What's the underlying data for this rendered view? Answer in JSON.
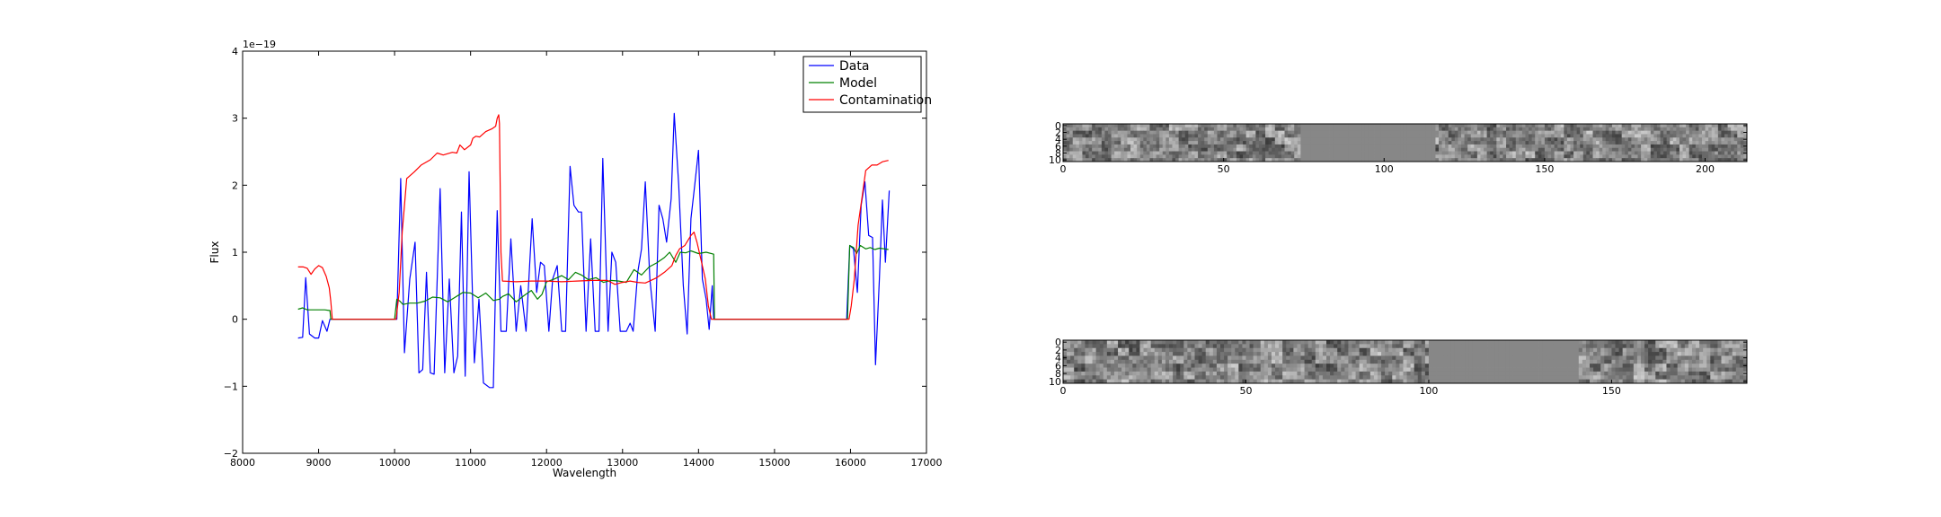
{
  "chart_data": [
    {
      "type": "line",
      "title": "",
      "xlabel": "Wavelength",
      "ylabel": "Flux",
      "offset_text": "1e−19",
      "xlim": [
        8000,
        17000
      ],
      "ylim": [
        -2,
        4
      ],
      "xticks": [
        8000,
        9000,
        10000,
        11000,
        12000,
        13000,
        14000,
        15000,
        16000,
        17000
      ],
      "yticks": [
        -2,
        -1,
        0,
        1,
        2,
        3,
        4
      ],
      "ytick_labels": [
        "−2",
        "−1",
        "0",
        "1",
        "2",
        "3",
        "4"
      ],
      "legend_position": "top-right",
      "grid": false,
      "series": [
        {
          "name": "Data",
          "color": "#0000ff",
          "points": [
            [
              8730,
              -0.28
            ],
            [
              8790,
              -0.27
            ],
            [
              8830,
              0.62
            ],
            [
              8880,
              -0.22
            ],
            [
              8950,
              -0.28
            ],
            [
              9000,
              -0.28
            ],
            [
              9050,
              -0.02
            ],
            [
              9110,
              -0.18
            ],
            [
              9150,
              0.0
            ],
            [
              10030,
              0.0
            ],
            [
              10080,
              2.1
            ],
            [
              10130,
              -0.5
            ],
            [
              10200,
              0.6
            ],
            [
              10270,
              1.15
            ],
            [
              10320,
              -0.8
            ],
            [
              10370,
              -0.75
            ],
            [
              10420,
              0.7
            ],
            [
              10470,
              -0.8
            ],
            [
              10520,
              -0.82
            ],
            [
              10600,
              1.95
            ],
            [
              10660,
              -0.8
            ],
            [
              10720,
              0.6
            ],
            [
              10780,
              -0.8
            ],
            [
              10830,
              -0.55
            ],
            [
              10880,
              1.6
            ],
            [
              10930,
              -0.85
            ],
            [
              10980,
              2.2
            ],
            [
              11050,
              -0.65
            ],
            [
              11110,
              0.3
            ],
            [
              11170,
              -0.95
            ],
            [
              11250,
              -1.02
            ],
            [
              11300,
              -1.02
            ],
            [
              11350,
              1.62
            ],
            [
              11400,
              -0.18
            ],
            [
              11470,
              -0.18
            ],
            [
              11530,
              1.2
            ],
            [
              11600,
              -0.18
            ],
            [
              11660,
              0.5
            ],
            [
              11730,
              -0.18
            ],
            [
              11810,
              1.5
            ],
            [
              11870,
              0.4
            ],
            [
              11920,
              0.85
            ],
            [
              11970,
              0.8
            ],
            [
              12030,
              -0.18
            ],
            [
              12080,
              0.6
            ],
            [
              12140,
              0.8
            ],
            [
              12200,
              -0.18
            ],
            [
              12250,
              -0.18
            ],
            [
              12310,
              2.28
            ],
            [
              12360,
              1.7
            ],
            [
              12420,
              1.6
            ],
            [
              12460,
              1.6
            ],
            [
              12520,
              -0.18
            ],
            [
              12580,
              1.2
            ],
            [
              12640,
              -0.18
            ],
            [
              12690,
              -0.18
            ],
            [
              12740,
              2.4
            ],
            [
              12810,
              -0.18
            ],
            [
              12860,
              1.0
            ],
            [
              12910,
              0.85
            ],
            [
              12970,
              -0.18
            ],
            [
              13050,
              -0.18
            ],
            [
              13100,
              -0.06
            ],
            [
              13140,
              -0.18
            ],
            [
              13200,
              0.7
            ],
            [
              13250,
              1.05
            ],
            [
              13300,
              2.05
            ],
            [
              13360,
              0.6
            ],
            [
              13430,
              -0.18
            ],
            [
              13480,
              1.7
            ],
            [
              13530,
              1.5
            ],
            [
              13580,
              1.15
            ],
            [
              13640,
              1.8
            ],
            [
              13680,
              3.07
            ],
            [
              13740,
              2.0
            ],
            [
              13800,
              0.5
            ],
            [
              13850,
              -0.22
            ],
            [
              13900,
              1.5
            ],
            [
              13950,
              2.0
            ],
            [
              14000,
              2.52
            ],
            [
              14050,
              0.6
            ],
            [
              14100,
              0.3
            ],
            [
              14140,
              -0.15
            ],
            [
              14180,
              0.5
            ],
            [
              14200,
              0.0
            ],
            [
              15950,
              0.0
            ],
            [
              15990,
              1.1
            ],
            [
              16040,
              1.05
            ],
            [
              16090,
              0.4
            ],
            [
              16140,
              1.7
            ],
            [
              16190,
              2.05
            ],
            [
              16240,
              1.25
            ],
            [
              16290,
              1.22
            ],
            [
              16330,
              -0.68
            ],
            [
              16380,
              0.6
            ],
            [
              16420,
              1.78
            ],
            [
              16460,
              0.85
            ],
            [
              16510,
              1.92
            ]
          ]
        },
        {
          "name": "Model",
          "color": "#008000",
          "points": [
            [
              8730,
              0.15
            ],
            [
              8790,
              0.17
            ],
            [
              8850,
              0.14
            ],
            [
              9000,
              0.14
            ],
            [
              9080,
              0.14
            ],
            [
              9150,
              0.13
            ],
            [
              9160,
              0.0
            ],
            [
              10000,
              0.0
            ],
            [
              10030,
              0.3
            ],
            [
              10070,
              0.27
            ],
            [
              10110,
              0.22
            ],
            [
              10200,
              0.24
            ],
            [
              10300,
              0.24
            ],
            [
              10400,
              0.27
            ],
            [
              10500,
              0.33
            ],
            [
              10600,
              0.32
            ],
            [
              10700,
              0.26
            ],
            [
              10800,
              0.33
            ],
            [
              10900,
              0.4
            ],
            [
              11000,
              0.39
            ],
            [
              11100,
              0.32
            ],
            [
              11200,
              0.39
            ],
            [
              11300,
              0.28
            ],
            [
              11380,
              0.3
            ],
            [
              11420,
              0.34
            ],
            [
              11500,
              0.38
            ],
            [
              11600,
              0.26
            ],
            [
              11700,
              0.35
            ],
            [
              11800,
              0.43
            ],
            [
              11880,
              0.3
            ],
            [
              11940,
              0.37
            ],
            [
              12000,
              0.56
            ],
            [
              12100,
              0.6
            ],
            [
              12200,
              0.65
            ],
            [
              12290,
              0.59
            ],
            [
              12380,
              0.7
            ],
            [
              12460,
              0.66
            ],
            [
              12550,
              0.59
            ],
            [
              12650,
              0.62
            ],
            [
              12750,
              0.55
            ],
            [
              12850,
              0.58
            ],
            [
              12950,
              0.57
            ],
            [
              13050,
              0.55
            ],
            [
              13150,
              0.74
            ],
            [
              13250,
              0.66
            ],
            [
              13350,
              0.78
            ],
            [
              13450,
              0.84
            ],
            [
              13550,
              0.92
            ],
            [
              13620,
              1.0
            ],
            [
              13700,
              0.85
            ],
            [
              13760,
              1.0
            ],
            [
              13830,
              0.99
            ],
            [
              13900,
              1.02
            ],
            [
              14000,
              0.98
            ],
            [
              14100,
              1.0
            ],
            [
              14200,
              0.97
            ],
            [
              14210,
              0.0
            ],
            [
              15960,
              0.0
            ],
            [
              15990,
              1.1
            ],
            [
              16040,
              1.07
            ],
            [
              16080,
              0.98
            ],
            [
              16130,
              1.1
            ],
            [
              16200,
              1.05
            ],
            [
              16260,
              1.07
            ],
            [
              16320,
              1.04
            ],
            [
              16380,
              1.06
            ],
            [
              16450,
              1.05
            ],
            [
              16500,
              1.04
            ]
          ]
        },
        {
          "name": "Contamination",
          "color": "#ff0000",
          "points": [
            [
              8730,
              0.78
            ],
            [
              8800,
              0.78
            ],
            [
              8850,
              0.76
            ],
            [
              8900,
              0.67
            ],
            [
              8950,
              0.75
            ],
            [
              9000,
              0.8
            ],
            [
              9050,
              0.77
            ],
            [
              9100,
              0.64
            ],
            [
              9140,
              0.47
            ],
            [
              9160,
              0.27
            ],
            [
              9180,
              0.0
            ],
            [
              10020,
              0.0
            ],
            [
              10060,
              0.4
            ],
            [
              10100,
              1.3
            ],
            [
              10160,
              2.1
            ],
            [
              10260,
              2.2
            ],
            [
              10350,
              2.3
            ],
            [
              10470,
              2.38
            ],
            [
              10560,
              2.48
            ],
            [
              10640,
              2.45
            ],
            [
              10760,
              2.49
            ],
            [
              10820,
              2.48
            ],
            [
              10860,
              2.6
            ],
            [
              10920,
              2.53
            ],
            [
              11000,
              2.6
            ],
            [
              11030,
              2.7
            ],
            [
              11070,
              2.73
            ],
            [
              11120,
              2.72
            ],
            [
              11200,
              2.8
            ],
            [
              11280,
              2.84
            ],
            [
              11330,
              2.88
            ],
            [
              11350,
              3.0
            ],
            [
              11370,
              3.05
            ],
            [
              11380,
              2.92
            ],
            [
              11400,
              1.0
            ],
            [
              11420,
              0.57
            ],
            [
              11600,
              0.56
            ],
            [
              11800,
              0.57
            ],
            [
              12000,
              0.57
            ],
            [
              12200,
              0.56
            ],
            [
              12400,
              0.57
            ],
            [
              12600,
              0.58
            ],
            [
              12800,
              0.58
            ],
            [
              12900,
              0.52
            ],
            [
              13000,
              0.55
            ],
            [
              13100,
              0.57
            ],
            [
              13200,
              0.55
            ],
            [
              13300,
              0.54
            ],
            [
              13450,
              0.62
            ],
            [
              13550,
              0.7
            ],
            [
              13650,
              0.8
            ],
            [
              13700,
              0.95
            ],
            [
              13750,
              1.05
            ],
            [
              13820,
              1.1
            ],
            [
              13900,
              1.25
            ],
            [
              13940,
              1.3
            ],
            [
              13980,
              1.15
            ],
            [
              14030,
              0.9
            ],
            [
              14090,
              0.6
            ],
            [
              14130,
              0.2
            ],
            [
              14170,
              0.0
            ],
            [
              15980,
              0.0
            ],
            [
              16010,
              0.2
            ],
            [
              16050,
              0.6
            ],
            [
              16100,
              1.4
            ],
            [
              16150,
              1.8
            ],
            [
              16200,
              2.22
            ],
            [
              16280,
              2.3
            ],
            [
              16350,
              2.3
            ],
            [
              16420,
              2.35
            ],
            [
              16500,
              2.37
            ]
          ]
        }
      ]
    },
    {
      "type": "heatmap",
      "xlim": [
        0,
        213
      ],
      "ylim": [
        11,
        0
      ],
      "xticks": [
        0,
        50,
        100,
        150,
        200
      ],
      "yticks": [
        0,
        2,
        4,
        6,
        8,
        10
      ],
      "blank_columns": [
        74,
        116
      ]
    },
    {
      "type": "heatmap",
      "xlim": [
        0,
        187
      ],
      "ylim": [
        11,
        0
      ],
      "xticks": [
        0,
        50,
        100,
        150
      ],
      "yticks": [
        0,
        2,
        4,
        6,
        8,
        10
      ],
      "blank_columns": [
        100,
        141
      ]
    }
  ]
}
